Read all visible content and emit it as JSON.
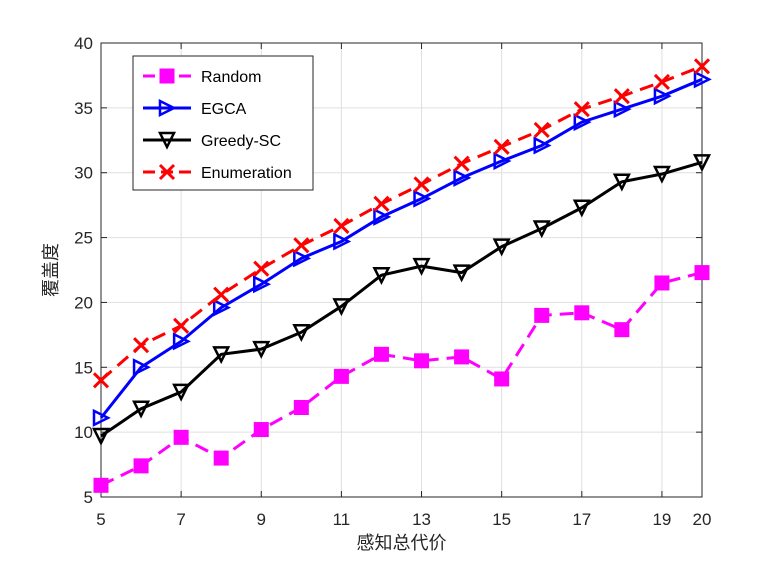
{
  "chart_data": {
    "type": "line",
    "title": "",
    "xlabel": "感知总代价",
    "ylabel": "覆盖度",
    "xlim": [
      5,
      20
    ],
    "ylim": [
      5,
      40
    ],
    "xticks": [
      5,
      7,
      9,
      11,
      13,
      15,
      17,
      19,
      20
    ],
    "yticks": [
      5,
      10,
      15,
      20,
      25,
      30,
      35,
      40
    ],
    "grid": true,
    "legend_position": "top-left",
    "x": [
      5,
      6,
      7,
      8,
      9,
      10,
      11,
      12,
      13,
      14,
      15,
      16,
      17,
      18,
      19,
      20
    ],
    "series": [
      {
        "name": "Random",
        "color": "#ff00ff",
        "line_style": "dashed",
        "marker": "square",
        "values": [
          5.9,
          7.4,
          9.6,
          8.0,
          10.2,
          11.9,
          14.3,
          16.0,
          15.5,
          15.8,
          14.1,
          19.0,
          19.2,
          17.9,
          21.5,
          22.3
        ]
      },
      {
        "name": "EGCA",
        "color": "#0000ff",
        "line_style": "solid",
        "marker": "triangle-right",
        "values": [
          11.1,
          15.0,
          17.0,
          19.6,
          21.4,
          23.4,
          24.7,
          26.6,
          28.0,
          29.6,
          30.9,
          32.1,
          33.9,
          34.9,
          35.9,
          37.2
        ]
      },
      {
        "name": "Greedy-SC",
        "color": "#000000",
        "line_style": "solid",
        "marker": "triangle-down",
        "values": [
          9.7,
          11.8,
          13.1,
          16.0,
          16.4,
          17.7,
          19.7,
          22.1,
          22.8,
          22.3,
          24.3,
          25.7,
          27.3,
          29.3,
          29.9,
          30.8
        ]
      },
      {
        "name": "Enumeration",
        "color": "#ff0000",
        "line_style": "dashed",
        "marker": "x",
        "values": [
          14.0,
          16.7,
          18.2,
          20.6,
          22.6,
          24.4,
          25.9,
          27.6,
          29.1,
          30.7,
          32.0,
          33.3,
          34.9,
          35.9,
          37.0,
          38.2
        ]
      }
    ]
  }
}
